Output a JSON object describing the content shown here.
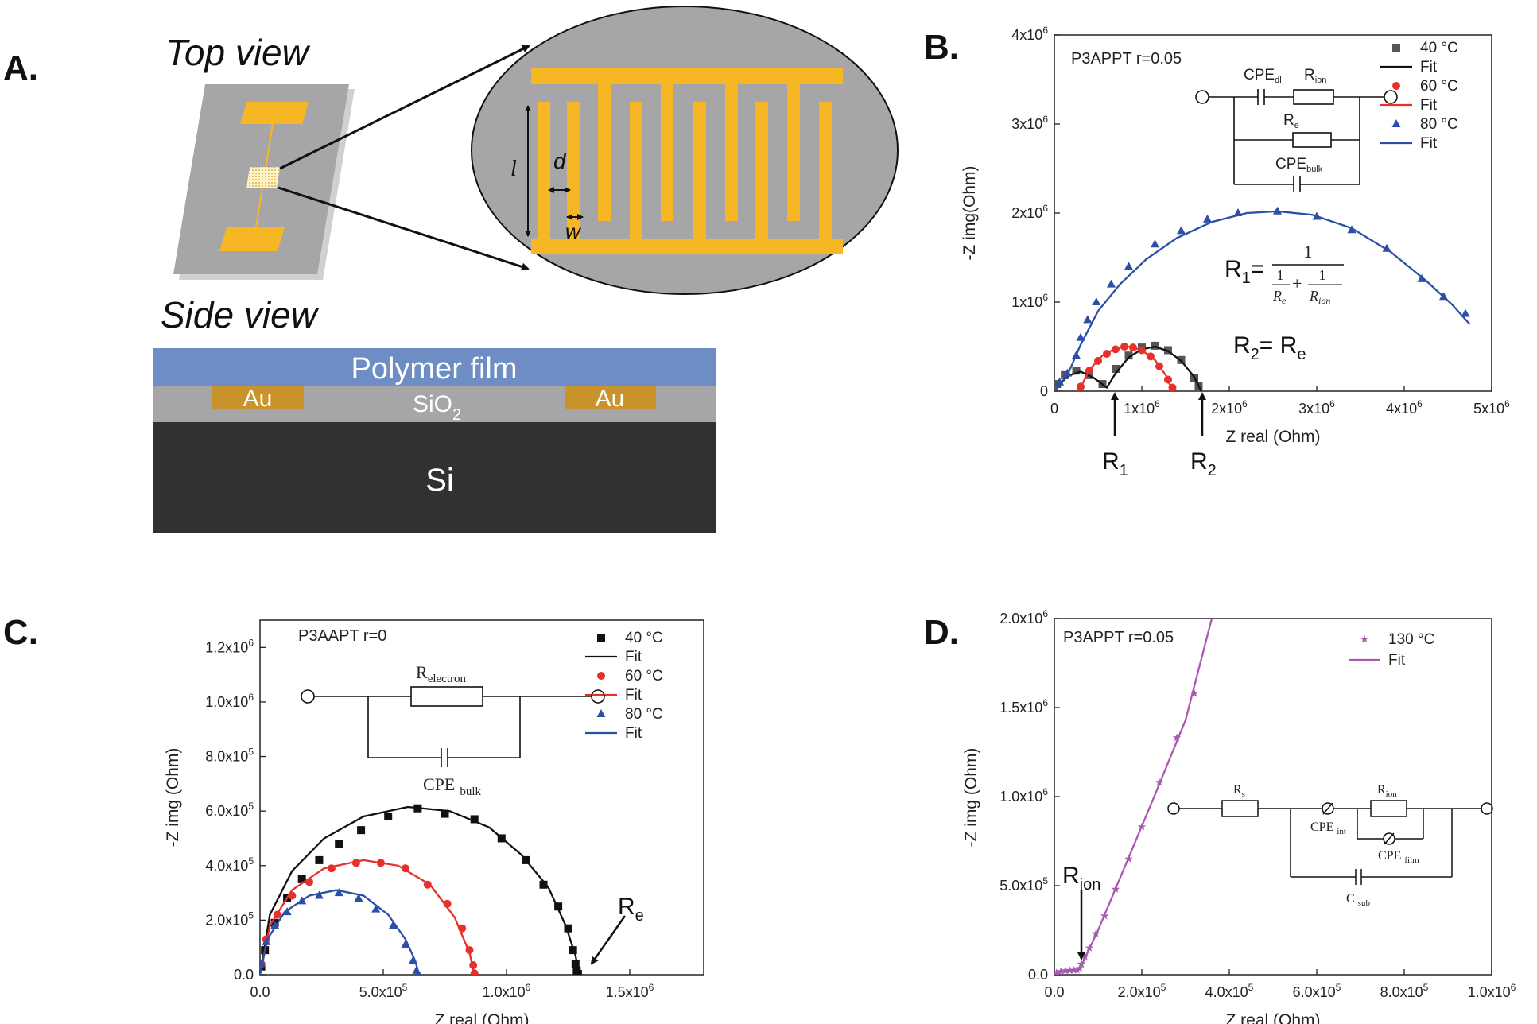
{
  "panel_a": {
    "label": "A.",
    "top_view": "Top view",
    "side_view": "Side view",
    "dim_l": "l",
    "dim_d": "d",
    "dim_w": "w",
    "polymer": "Polymer film",
    "au": "Au",
    "sio2": "SiO",
    "sio2_sub": "2",
    "si": "Si",
    "colors": {
      "gold": "#f7b624",
      "gray": "#a6a6a8",
      "film": "#6d8dc4",
      "si": "#313133",
      "au_side": "#c8932a"
    }
  },
  "panel_b": {
    "label": "B.",
    "circuit": {
      "cpe_dl": "CPE",
      "cpe_dl_sub": "dl",
      "r_ion": "R",
      "r_ion_sub": "ion",
      "r_e": "R",
      "r_e_sub": "e",
      "cpe_bulk": "CPE",
      "cpe_bulk_sub": "bulk"
    },
    "eq1": {
      "lhs": "R",
      "lhs_sub": "1",
      "eq": "=",
      "num": "1",
      "t1": "1",
      "t1_den": "R",
      "t1_den_sub": "e",
      "plus": "+",
      "t2": "1",
      "t2_den": "R",
      "t2_den_sub": "ion"
    },
    "eq2": {
      "lhs": "R",
      "lhs_sub": "2",
      "rhs": "= R",
      "rhs_sub": "e"
    },
    "arrow1": {
      "text": "R",
      "sub": "1"
    },
    "arrow2": {
      "text": "R",
      "sub": "2"
    }
  },
  "panel_c": {
    "label": "C.",
    "circuit": {
      "r": "R",
      "r_sub": "electron",
      "cpe": "CPE",
      "cpe_sub": "bulk"
    },
    "arrow": {
      "text": "R",
      "sub": "e"
    }
  },
  "panel_d": {
    "label": "D.",
    "circuit": {
      "rs": "R",
      "rs_sub": "s",
      "rion": "R",
      "rion_sub": "ion",
      "cpe_int": "CPE",
      "cpe_int_sub": "int",
      "cpe_film": "CPE",
      "cpe_film_sub": "film",
      "csub": "C",
      "csub_sub": "sub"
    },
    "arrow": {
      "text": "R",
      "sub": "ion"
    }
  },
  "chart_data": [
    {
      "id": "B",
      "type": "scatter",
      "title": "P3APPT r=0.05",
      "xlabel": "Z real (Ohm)",
      "ylabel": "-Z img(Ohm)",
      "xlim": [
        0,
        5000000
      ],
      "ylim": [
        0,
        4000000
      ],
      "xticks": [
        0,
        1000000,
        2000000,
        3000000,
        4000000,
        5000000
      ],
      "yticks": [
        0,
        1000000,
        2000000,
        3000000,
        4000000
      ],
      "xtick_labels": [
        "0",
        "1x10^6",
        "2x10^6",
        "3x10^6",
        "4x10^6",
        "5x10^6"
      ],
      "ytick_labels": [
        "0",
        "1x10^6",
        "2x10^6",
        "3x10^6",
        "4x10^6"
      ],
      "legend_position": "top-right",
      "series": [
        {
          "name": "40 °C",
          "marker": "square",
          "color": "#555555",
          "x": [
            30000,
            120000,
            250000,
            400000,
            550000,
            700000,
            850000,
            1000000,
            1150000,
            1300000,
            1450000,
            1600000,
            1650000
          ],
          "y": [
            80000,
            180000,
            230000,
            180000,
            80000,
            250000,
            400000,
            490000,
            510000,
            460000,
            350000,
            150000,
            60000
          ]
        },
        {
          "name": "Fit",
          "line": true,
          "color": "#111111",
          "x": [
            0,
            150000,
            300000,
            450000,
            600000,
            700000,
            850000,
            1000000,
            1150000,
            1300000,
            1450000,
            1600000,
            1680000
          ],
          "y": [
            0,
            170000,
            220000,
            150000,
            40000,
            200000,
            380000,
            470000,
            500000,
            450000,
            340000,
            160000,
            0
          ]
        },
        {
          "name": "60 °C",
          "marker": "circle",
          "color": "#e8302a",
          "x": [
            300000,
            400000,
            500000,
            600000,
            700000,
            800000,
            900000,
            1000000,
            1100000,
            1200000,
            1300000,
            1350000
          ],
          "y": [
            50000,
            230000,
            340000,
            420000,
            470000,
            500000,
            490000,
            460000,
            390000,
            280000,
            130000,
            40000
          ]
        },
        {
          "name": "Fit",
          "line": true,
          "color": "#e8302a",
          "x": [
            280000,
            400000,
            550000,
            700000,
            850000,
            1000000,
            1150000,
            1280000,
            1350000
          ],
          "y": [
            0,
            240000,
            400000,
            480000,
            500000,
            460000,
            350000,
            170000,
            0
          ]
        },
        {
          "name": "80 °C",
          "marker": "triangle",
          "color": "#2c4fa8",
          "x": [
            60000,
            150000,
            250000,
            300000,
            380000,
            480000,
            650000,
            850000,
            1150000,
            1450000,
            1750000,
            2100000,
            2550000,
            3000000,
            3400000,
            3800000,
            4200000,
            4450000,
            4700000
          ],
          "y": [
            100000,
            200000,
            400000,
            600000,
            800000,
            1000000,
            1200000,
            1400000,
            1650000,
            1800000,
            1930000,
            2000000,
            2020000,
            1960000,
            1810000,
            1600000,
            1260000,
            1060000,
            870000
          ]
        },
        {
          "name": "Fit",
          "line": true,
          "color": "#2c4fa8",
          "x": [
            0,
            150000,
            300000,
            500000,
            750000,
            1050000,
            1400000,
            1800000,
            2200000,
            2550000,
            2950000,
            3400000,
            3850000,
            4250000,
            4550000,
            4750000
          ],
          "y": [
            0,
            180000,
            520000,
            900000,
            1200000,
            1480000,
            1720000,
            1900000,
            2000000,
            2020000,
            1980000,
            1830000,
            1560000,
            1240000,
            970000,
            750000
          ]
        }
      ]
    },
    {
      "id": "C",
      "type": "scatter",
      "title": "P3AAPT r=0",
      "xlabel": "Z real (Ohm)",
      "ylabel": "-Z img (Ohm)",
      "xlim": [
        0,
        1800000
      ],
      "ylim": [
        0,
        1300000
      ],
      "xticks": [
        0,
        500000,
        1000000,
        1500000
      ],
      "yticks": [
        0,
        200000,
        400000,
        600000,
        800000,
        1000000,
        1200000
      ],
      "xtick_labels": [
        "0.0",
        "5.0x10^5",
        "1.0x10^6",
        "1.5x10^6"
      ],
      "ytick_labels": [
        "0.0",
        "2.0x10^5",
        "4.0x10^5",
        "6.0x10^5",
        "8.0x10^5",
        "1.0x10^6",
        "1.2x10^6"
      ],
      "legend_position": "top-right",
      "series": [
        {
          "name": "40 °C",
          "marker": "square",
          "color": "#111111",
          "x": [
            5000,
            20000,
            60000,
            110000,
            170000,
            240000,
            320000,
            410000,
            520000,
            640000,
            750000,
            870000,
            980000,
            1080000,
            1150000,
            1210000,
            1250000,
            1270000,
            1280000,
            1285000,
            1290000
          ],
          "y": [
            30000,
            90000,
            190000,
            280000,
            350000,
            420000,
            480000,
            530000,
            580000,
            610000,
            590000,
            570000,
            500000,
            420000,
            330000,
            250000,
            170000,
            90000,
            40000,
            15000,
            3000
          ]
        },
        {
          "name": "Fit",
          "line": true,
          "color": "#111111",
          "x": [
            0,
            40000,
            130000,
            260000,
            420000,
            600000,
            770000,
            930000,
            1060000,
            1170000,
            1240000,
            1280000,
            1295000
          ],
          "y": [
            0,
            220000,
            380000,
            500000,
            580000,
            615000,
            600000,
            540000,
            440000,
            320000,
            180000,
            70000,
            0
          ]
        },
        {
          "name": "60 °C",
          "marker": "circle",
          "color": "#e8302a",
          "x": [
            5000,
            25000,
            70000,
            130000,
            200000,
            290000,
            390000,
            490000,
            590000,
            680000,
            760000,
            820000,
            850000,
            865000,
            870000
          ],
          "y": [
            40000,
            130000,
            220000,
            290000,
            340000,
            390000,
            410000,
            410000,
            390000,
            330000,
            260000,
            170000,
            90000,
            35000,
            5000
          ]
        },
        {
          "name": "Fit",
          "line": true,
          "color": "#e8302a",
          "x": [
            0,
            40000,
            130000,
            260000,
            420000,
            560000,
            690000,
            790000,
            850000,
            870000
          ],
          "y": [
            0,
            180000,
            310000,
            390000,
            420000,
            400000,
            330000,
            210000,
            80000,
            0
          ]
        },
        {
          "name": "80 °C",
          "marker": "triangle",
          "color": "#2c4fa8",
          "x": [
            5000,
            25000,
            60000,
            110000,
            170000,
            240000,
            320000,
            400000,
            470000,
            540000,
            590000,
            620000,
            635000,
            640000
          ],
          "y": [
            40000,
            120000,
            180000,
            230000,
            270000,
            290000,
            300000,
            280000,
            240000,
            180000,
            110000,
            50000,
            15000,
            3000
          ]
        },
        {
          "name": "Fit",
          "line": true,
          "color": "#2c4fa8",
          "x": [
            0,
            30000,
            100000,
            200000,
            310000,
            420000,
            520000,
            590000,
            630000,
            645000
          ],
          "y": [
            0,
            130000,
            230000,
            290000,
            310000,
            290000,
            220000,
            130000,
            50000,
            0
          ]
        }
      ]
    },
    {
      "id": "D",
      "type": "scatter",
      "title": "P3APPT r=0.05",
      "xlabel": "Z real (Ohm)",
      "ylabel": "-Z img (Ohm)",
      "xlim": [
        0,
        1000000
      ],
      "ylim": [
        0,
        2000000
      ],
      "xticks": [
        0,
        200000,
        400000,
        600000,
        800000,
        1000000
      ],
      "yticks": [
        0,
        500000,
        1000000,
        1500000,
        2000000
      ],
      "xtick_labels": [
        "0.0",
        "2.0x10^5",
        "4.0x10^5",
        "6.0x10^5",
        "8.0x10^5",
        "1.0x10^6"
      ],
      "ytick_labels": [
        "0.0",
        "5.0x10^5",
        "1.0x10^6",
        "1.5x10^6",
        "2.0x10^6"
      ],
      "legend_position": "top-right",
      "series": [
        {
          "name": "130 °C",
          "marker": "star",
          "color": "#a95ab0",
          "x": [
            5000,
            15000,
            25000,
            35000,
            45000,
            52000,
            58000,
            62000,
            70000,
            80000,
            95000,
            115000,
            140000,
            170000,
            200000,
            240000,
            280000,
            320000
          ],
          "y": [
            10000,
            18000,
            22000,
            24000,
            25000,
            26000,
            35000,
            60000,
            100000,
            150000,
            230000,
            330000,
            480000,
            650000,
            830000,
            1080000,
            1330000,
            1580000
          ]
        },
        {
          "name": "Fit",
          "line": true,
          "color": "#a95ab0",
          "x": [
            0,
            20000,
            50000,
            58000,
            100000,
            160000,
            230000,
            300000,
            360000
          ],
          "y": [
            0,
            20000,
            25000,
            30000,
            250000,
            600000,
            1010000,
            1430000,
            2000000
          ]
        }
      ]
    }
  ]
}
